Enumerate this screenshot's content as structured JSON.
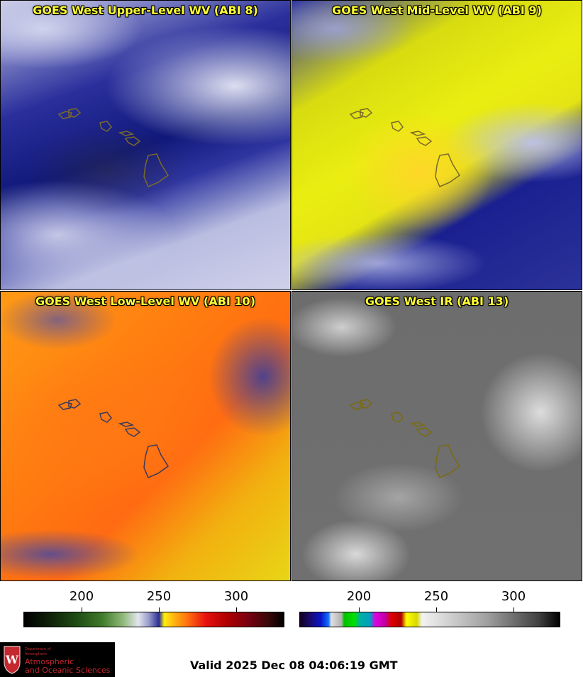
{
  "panels": [
    {
      "title": "GOES West Upper-Level WV (ABI 8)",
      "outline_color": "#7a6a2a"
    },
    {
      "title": "GOES West Mid-Level WV (ABI 9)",
      "outline_color": "#7a6a2a"
    },
    {
      "title": "GOES West Low-Level WV (ABI 10)",
      "outline_color": "#3a3a5a"
    },
    {
      "title": "GOES West IR (ABI 13)",
      "outline_color": "#7a6a10"
    }
  ],
  "colorbars": [
    {
      "ticks": [
        {
          "label": "200",
          "frac": 0.225
        },
        {
          "label": "250",
          "frac": 0.52
        },
        {
          "label": "300",
          "frac": 0.815
        }
      ]
    },
    {
      "ticks": [
        {
          "label": "200",
          "frac": 0.225
        },
        {
          "label": "250",
          "frac": 0.52
        },
        {
          "label": "300",
          "frac": 0.815
        }
      ]
    }
  ],
  "logo": {
    "line1": "Department of",
    "line2": "Atmospheric",
    "line3": "Atmospheric",
    "line4": "and Oceanic Sciences",
    "crest_letter": "W"
  },
  "valid_time": "Valid 2025 Dec 08 04:06:19 GMT"
}
